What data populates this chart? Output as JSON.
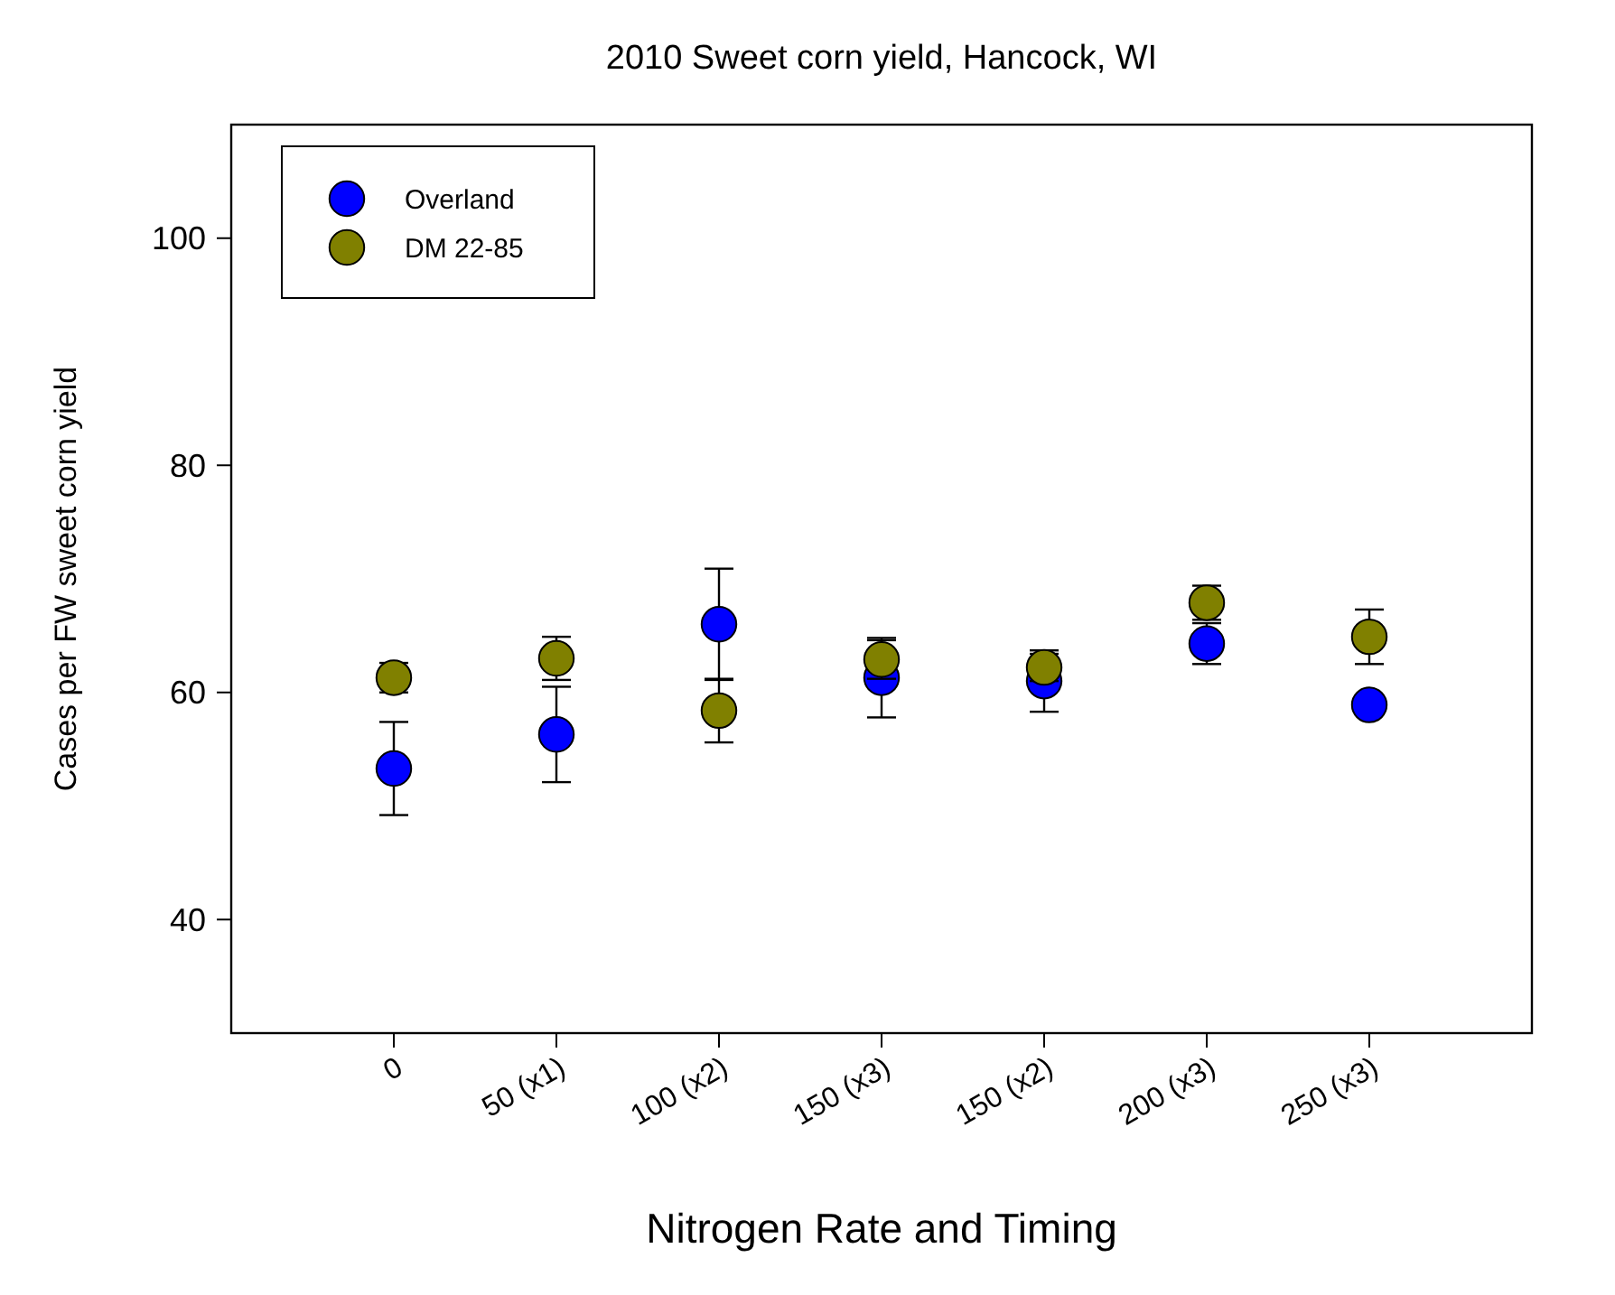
{
  "chart_data": {
    "type": "scatter",
    "title": "2010 Sweet corn yield, Hancock, WI",
    "xlabel": "Nitrogen Rate and Timing",
    "ylabel": "Cases per FW sweet corn yield",
    "categories": [
      "0",
      "50 (x1)",
      "100 (x2)",
      "150 (x3)",
      "150 (x2)",
      "200 (x3)",
      "250 (x3)"
    ],
    "ylim": [
      30,
      110
    ],
    "yticks": [
      40,
      60,
      80,
      100
    ],
    "grid": false,
    "legend": "top left",
    "marker": "circle",
    "series": [
      {
        "name": "Overland",
        "color": "#0000ff",
        "values": [
          53.3,
          56.3,
          66.0,
          61.3,
          61.0,
          64.3,
          58.9
        ],
        "errors": [
          4.1,
          4.2,
          4.9,
          3.5,
          2.7,
          1.8,
          null
        ]
      },
      {
        "name": "DM 22-85",
        "color": "#808000",
        "values": [
          61.3,
          63.0,
          58.4,
          62.9,
          62.2,
          67.9,
          64.9
        ],
        "errors": [
          1.3,
          1.9,
          2.8,
          1.7,
          1.2,
          1.5,
          2.4
        ]
      }
    ]
  }
}
